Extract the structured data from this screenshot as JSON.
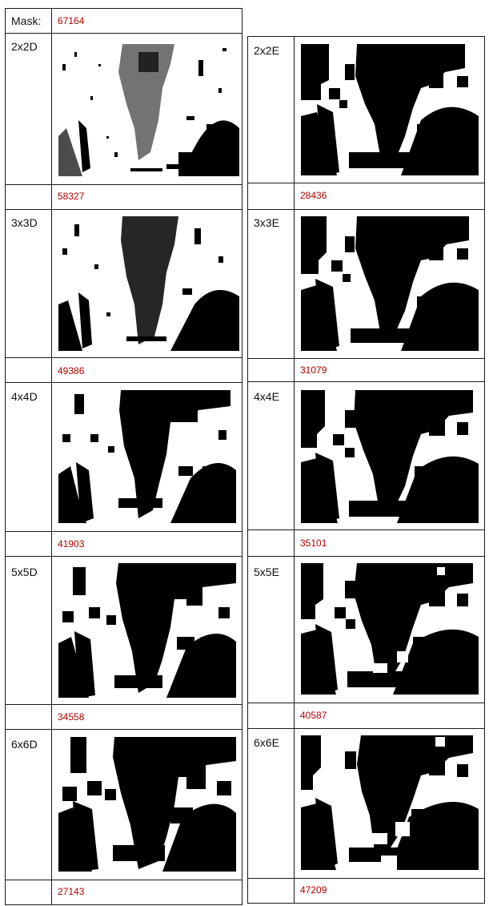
{
  "header": {
    "label": "Mask:",
    "value": "67164"
  },
  "left": [
    {
      "label": "2x2D",
      "value": "58327"
    },
    {
      "label": "3x3D",
      "value": "49386"
    },
    {
      "label": "4x4D",
      "value": "41903"
    },
    {
      "label": "5x5D",
      "value": "34558"
    },
    {
      "label": "6x6D",
      "value": "27143"
    }
  ],
  "right": [
    {
      "label": "2x2E",
      "value": "28436"
    },
    {
      "label": "3x3E",
      "value": "31079"
    },
    {
      "label": "4x4E",
      "value": "35101"
    },
    {
      "label": "5x5E",
      "value": "40587"
    },
    {
      "label": "6x6E",
      "value": "47209"
    }
  ],
  "colors": {
    "text": "#111111",
    "value_red": "#b00000",
    "border": "#1a1a1a",
    "ink": "#000000"
  }
}
